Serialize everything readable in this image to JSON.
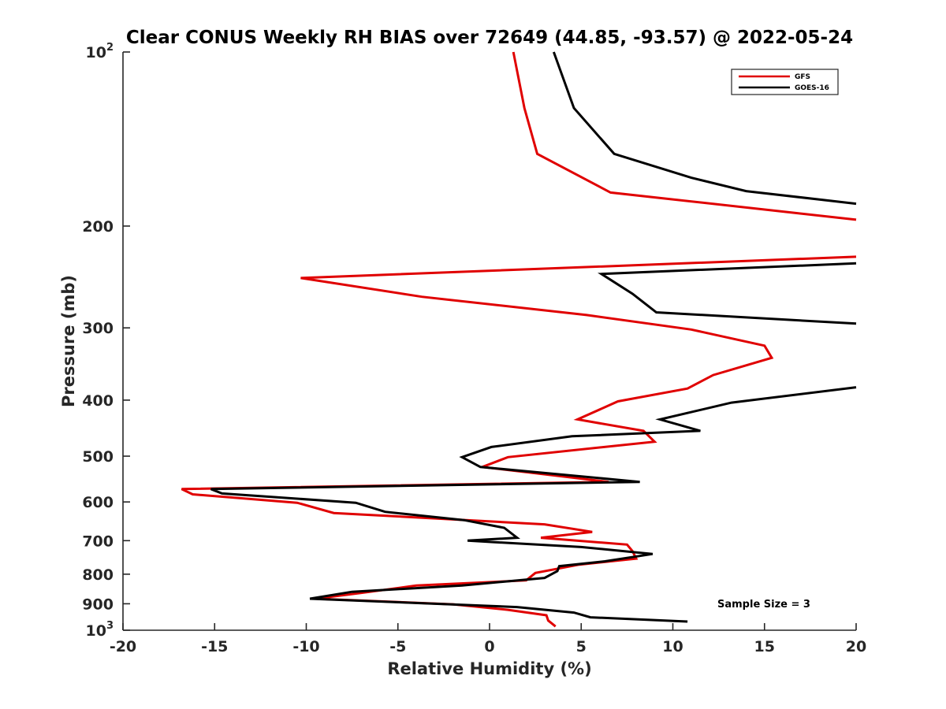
{
  "chart_data": {
    "type": "line",
    "title": "Clear CONUS Weekly RH BIAS over 72649 (44.85, -93.57) @ 2022-05-24",
    "xlabel": "Relative Humidity (%)",
    "ylabel": "Pressure (mb)",
    "xlim": [
      -20,
      20
    ],
    "ylim": [
      100,
      1000
    ],
    "y_scale": "log",
    "y_reversed": true,
    "grid": false,
    "legend_position": "top-right",
    "x_ticks": [
      "-20",
      "-15",
      "-10",
      "-5",
      "0",
      "5",
      "10",
      "15",
      "20"
    ],
    "y_ticks": [
      {
        "value": 100,
        "base": "10",
        "exp": "2"
      },
      {
        "value": 200,
        "label": "200"
      },
      {
        "value": 300,
        "label": "300"
      },
      {
        "value": 400,
        "label": "400"
      },
      {
        "value": 500,
        "label": "500"
      },
      {
        "value": 600,
        "label": "600"
      },
      {
        "value": 700,
        "label": "700"
      },
      {
        "value": 800,
        "label": "800"
      },
      {
        "value": 900,
        "label": "900"
      },
      {
        "value": 1000,
        "base": "10",
        "exp": "3"
      }
    ],
    "annotation": "Sample Size = 3",
    "series": [
      {
        "name": "GFS",
        "color": "#e00000",
        "points": [
          [
            1.3,
            100
          ],
          [
            1.9,
            125
          ],
          [
            2.6,
            150
          ],
          [
            6.6,
            175
          ],
          [
            16.8,
            190
          ],
          [
            20.0,
            195
          ],
          [
            null,
            null
          ],
          [
            20.0,
            226
          ],
          [
            -10.3,
            246
          ],
          [
            -3.7,
            265
          ],
          [
            5.3,
            285
          ],
          [
            11.0,
            302
          ],
          [
            15.0,
            322
          ],
          [
            15.4,
            338
          ],
          [
            12.2,
            362
          ],
          [
            10.8,
            382
          ],
          [
            7.0,
            402
          ],
          [
            4.8,
            432
          ],
          [
            8.4,
            452
          ],
          [
            9.0,
            472
          ],
          [
            1.0,
            502
          ],
          [
            -0.4,
            522
          ],
          [
            6.5,
            554
          ],
          [
            -16.8,
            570
          ],
          [
            -16.2,
            582
          ],
          [
            -10.5,
            602
          ],
          [
            -8.5,
            627
          ],
          [
            3.0,
            656
          ],
          [
            5.6,
            676
          ],
          [
            2.8,
            692
          ],
          [
            7.5,
            711
          ],
          [
            7.8,
            730
          ],
          [
            8.0,
            752
          ],
          [
            4.9,
            770
          ],
          [
            2.5,
            796
          ],
          [
            2.0,
            820
          ],
          [
            -4.0,
            837
          ],
          [
            -7.0,
            862
          ],
          [
            -9.5,
            882
          ],
          [
            -2.0,
            902
          ],
          [
            1.0,
            922
          ],
          [
            3.1,
            942
          ],
          [
            3.2,
            962
          ],
          [
            3.6,
            985
          ]
        ]
      },
      {
        "name": "GOES-16",
        "color": "#000000",
        "points": [
          [
            3.5,
            100
          ],
          [
            4.6,
            125
          ],
          [
            6.8,
            150
          ],
          [
            11.0,
            165
          ],
          [
            14.0,
            174
          ],
          [
            20.0,
            183
          ],
          [
            null,
            null
          ],
          [
            20.0,
            232
          ],
          [
            6.1,
            242
          ],
          [
            7.8,
            262
          ],
          [
            9.1,
            282
          ],
          [
            20.0,
            295
          ],
          [
            null,
            null
          ],
          [
            20.0,
            380
          ],
          [
            13.2,
            404
          ],
          [
            9.3,
            432
          ],
          [
            11.5,
            452
          ],
          [
            4.5,
            462
          ],
          [
            0.1,
            482
          ],
          [
            -1.5,
            502
          ],
          [
            -0.5,
            522
          ],
          [
            8.2,
            554
          ],
          [
            -15.2,
            570
          ],
          [
            -14.6,
            580
          ],
          [
            -7.3,
            602
          ],
          [
            -5.7,
            624
          ],
          [
            -1.4,
            645
          ],
          [
            0.8,
            665
          ],
          [
            1.5,
            692
          ],
          [
            -1.2,
            700
          ],
          [
            5.0,
            718
          ],
          [
            8.9,
            738
          ],
          [
            6.3,
            760
          ],
          [
            3.8,
            775
          ],
          [
            3.7,
            790
          ],
          [
            3.0,
            812
          ],
          [
            -1.5,
            837
          ],
          [
            -7.5,
            858
          ],
          [
            -9.8,
            882
          ],
          [
            1.5,
            912
          ],
          [
            4.6,
            932
          ],
          [
            5.5,
            950
          ],
          [
            10.8,
            966
          ]
        ]
      }
    ]
  }
}
